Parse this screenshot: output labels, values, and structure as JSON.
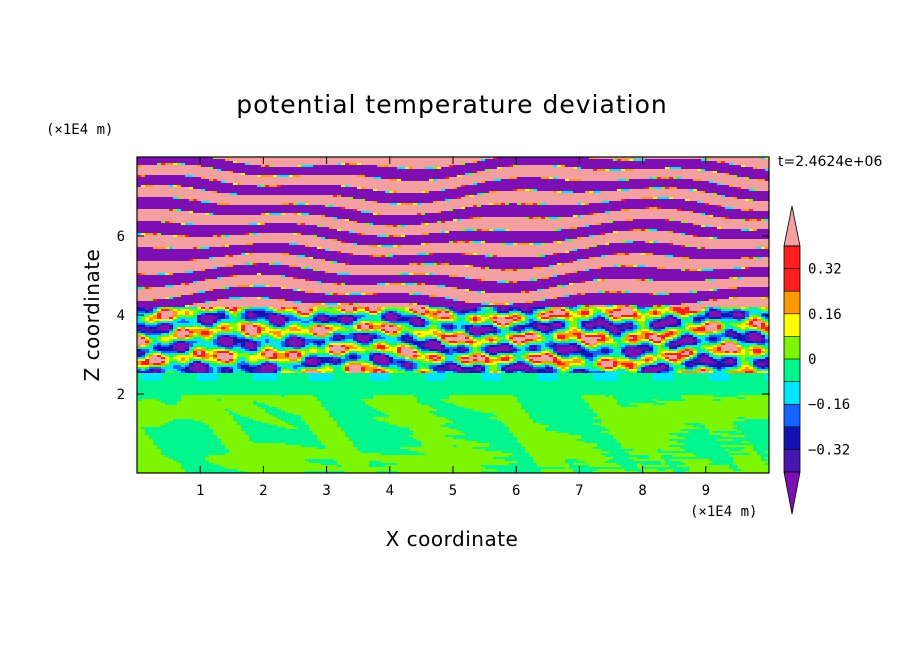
{
  "chart_data": {
    "type": "heatmap",
    "title": "potential temperature deviation",
    "xlabel": "X coordinate",
    "ylabel": "Z coordinate",
    "x_unit": "(×1E4 m)",
    "y_unit": "(×1E4 m)",
    "time_label": "t=2.4624e+06",
    "xlim": [
      0,
      10
    ],
    "ylim": [
      0,
      8
    ],
    "x_ticks": [
      1,
      2,
      3,
      4,
      5,
      6,
      7,
      8,
      9
    ],
    "y_ticks": [
      2,
      4,
      6
    ],
    "x_tick_labels": [
      "1",
      "2",
      "3",
      "4",
      "5",
      "6",
      "7",
      "8",
      "9"
    ],
    "y_tick_labels": [
      "2",
      "4",
      "6"
    ],
    "colorbar": {
      "levels": [
        -0.4,
        -0.32,
        -0.24,
        -0.16,
        -0.08,
        0,
        0.08,
        0.16,
        0.24,
        0.32,
        0.4
      ],
      "labeled_levels": [
        0.32,
        0.16,
        0,
        -0.16,
        -0.32
      ],
      "labels": [
        "0.32",
        "0.16",
        "0",
        "−0.16",
        "−0.32"
      ],
      "colors_low_to_high": [
        "#7d0fb4",
        "#4a16b0",
        "#1414b4",
        "#1464ff",
        "#00e6ff",
        "#00f58c",
        "#7cf500",
        "#ffff00",
        "#ff9900",
        "#ff1e1e",
        "#f5a0a0"
      ],
      "extend": "both"
    },
    "regions": [
      {
        "z_range": [
          0,
          1.95
        ],
        "description": "lower layer",
        "dominant_values": [
          0,
          0.08
        ]
      },
      {
        "z_range": [
          1.95,
          2.55
        ],
        "description": "transition band",
        "dominant_values": [
          -0.08,
          0
        ]
      },
      {
        "z_range": [
          2.55,
          4.2
        ],
        "description": "turbulent mixing zone",
        "dominant_values": [
          -0.4,
          0.4
        ]
      },
      {
        "z_range": [
          4.2,
          8.0
        ],
        "description": "alternating horizontal bands",
        "dominant_values": [
          -0.4,
          0.4
        ]
      }
    ]
  }
}
